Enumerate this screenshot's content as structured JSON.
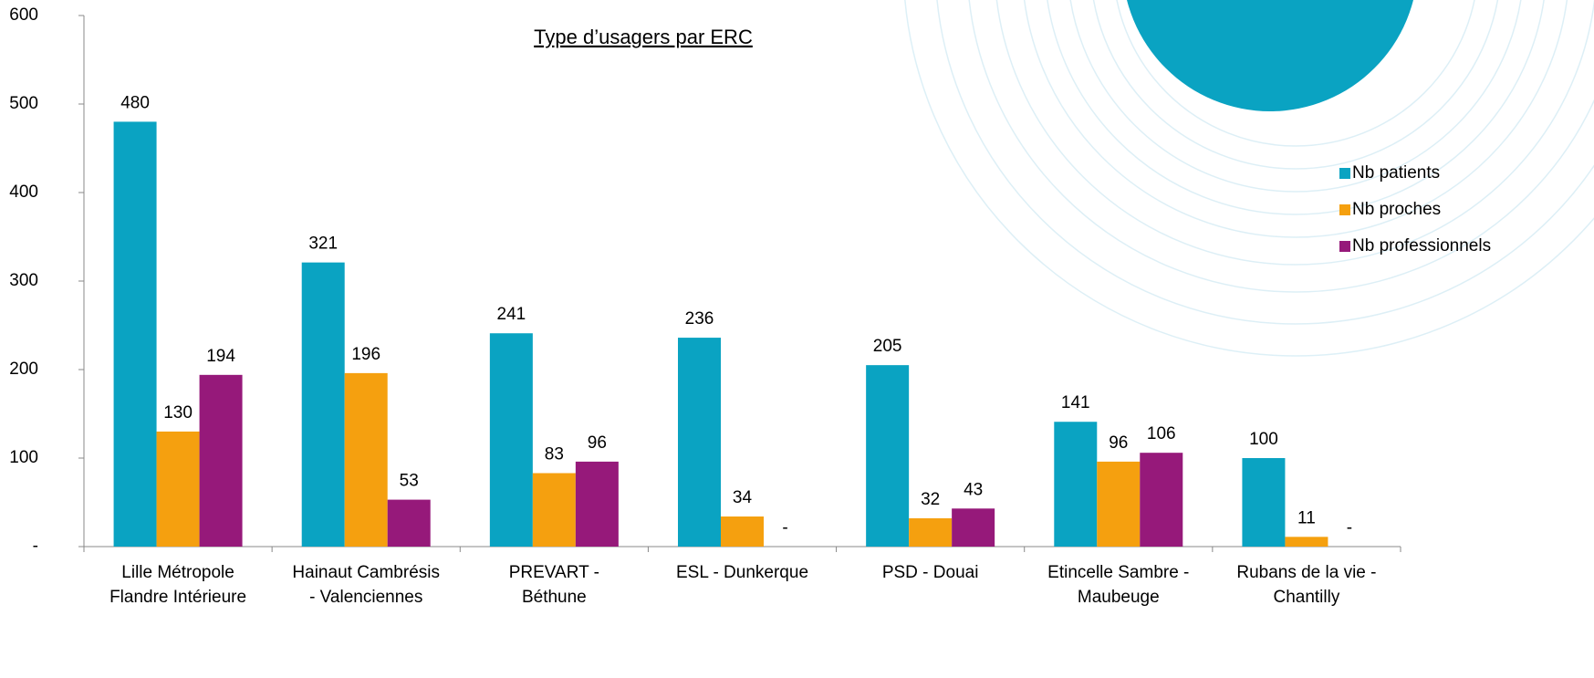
{
  "chart_data": {
    "type": "bar",
    "title": "Type d’usagers par ERC",
    "categories": [
      [
        "Lille Métropole",
        "Flandre Intérieure"
      ],
      [
        "Hainaut Cambrésis",
        "- Valenciennes"
      ],
      [
        "PREVART -",
        "Béthune"
      ],
      [
        "ESL - Dunkerque"
      ],
      [
        "PSD - Douai"
      ],
      [
        "Etincelle Sambre -",
        "Maubeuge"
      ],
      [
        "Rubans de la vie -",
        "Chantilly"
      ]
    ],
    "series": [
      {
        "name": "Nb patients",
        "color": "#0aa3c2",
        "values": [
          480,
          321,
          241,
          236,
          205,
          141,
          100
        ]
      },
      {
        "name": "Nb proches",
        "color": "#f5a00f",
        "values": [
          130,
          196,
          83,
          34,
          32,
          96,
          11
        ]
      },
      {
        "name": "Nb professionnels",
        "color": "#96197a",
        "values": [
          194,
          53,
          96,
          0,
          43,
          106,
          0
        ],
        "value_labels": [
          "194",
          "53",
          "96",
          "-",
          "43",
          "106",
          "-"
        ]
      }
    ],
    "ylim": [
      0,
      600
    ],
    "yticks": [
      {
        "value": 0,
        "label": "-"
      },
      100,
      200,
      300,
      400,
      500,
      600
    ],
    "grid": false,
    "legend": "right"
  }
}
